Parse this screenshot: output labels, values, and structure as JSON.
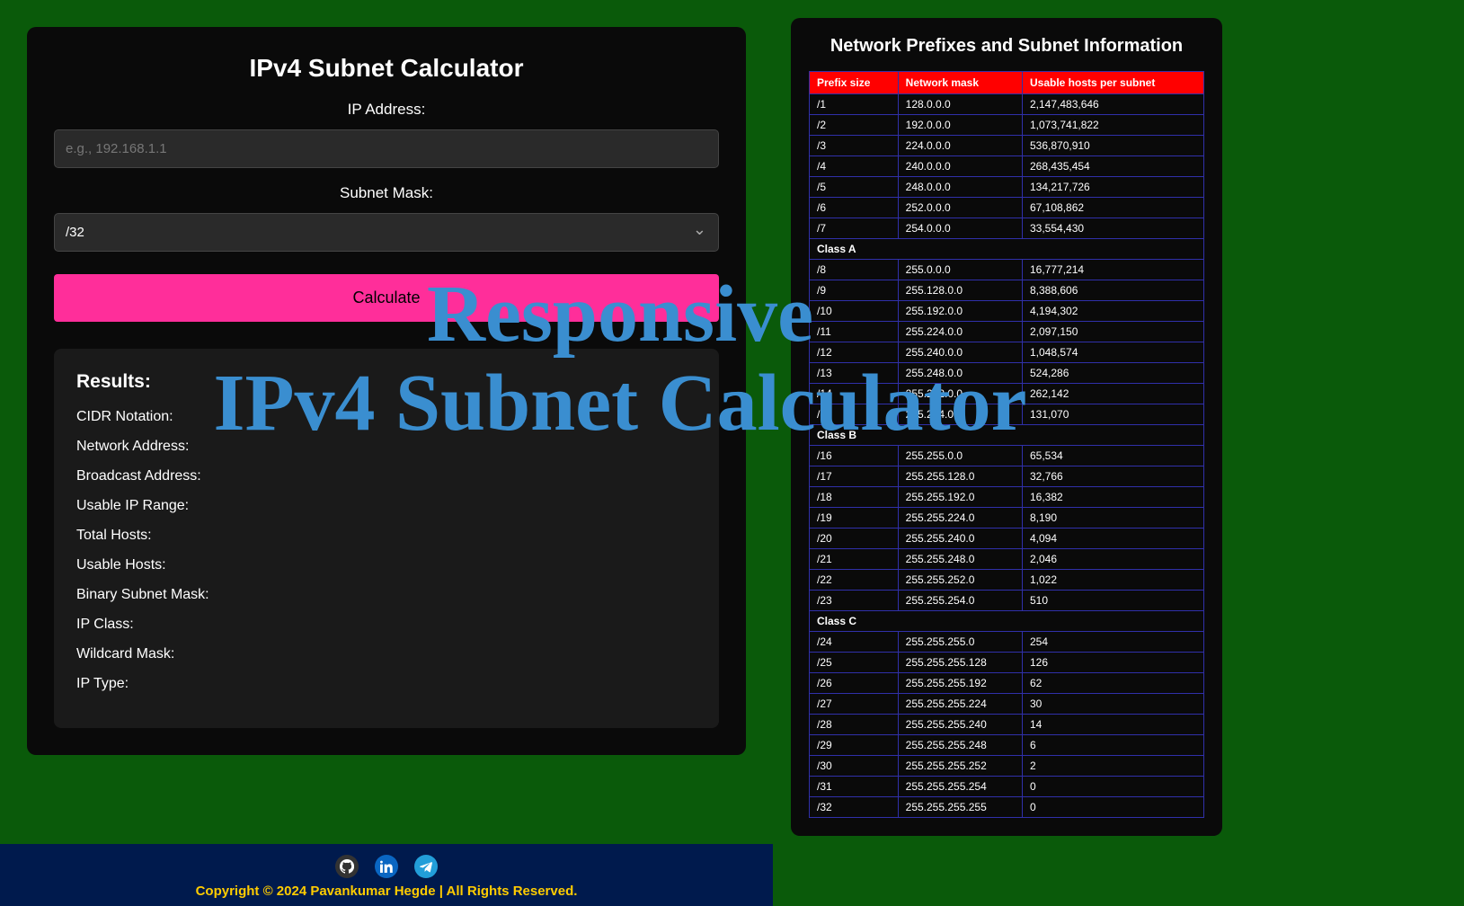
{
  "overlay": {
    "line1": "Responsive",
    "line2": "IPv4 Subnet Calculator"
  },
  "calc": {
    "title": "IPv4 Subnet Calculator",
    "ip_label": "IP Address:",
    "ip_placeholder": "e.g., 192.168.1.1",
    "mask_label": "Subnet Mask:",
    "mask_value": "/32",
    "calculate_label": "Calculate",
    "results_title": "Results:",
    "rows": [
      "CIDR Notation:",
      "Network Address:",
      "Broadcast Address:",
      "Usable IP Range:",
      "Total Hosts:",
      "Usable Hosts:",
      "Binary Subnet Mask:",
      "IP Class:",
      "Wildcard Mask:",
      "IP Type:"
    ]
  },
  "prefixes": {
    "title": "Network Prefixes and Subnet Information",
    "headers": [
      "Prefix size",
      "Network mask",
      "Usable hosts per subnet"
    ],
    "rows": [
      {
        "cells": [
          "/1",
          "128.0.0.0",
          "2,147,483,646"
        ]
      },
      {
        "cells": [
          "/2",
          "192.0.0.0",
          "1,073,741,822"
        ]
      },
      {
        "cells": [
          "/3",
          "224.0.0.0",
          "536,870,910"
        ]
      },
      {
        "cells": [
          "/4",
          "240.0.0.0",
          "268,435,454"
        ]
      },
      {
        "cells": [
          "/5",
          "248.0.0.0",
          "134,217,726"
        ]
      },
      {
        "cells": [
          "/6",
          "252.0.0.0",
          "67,108,862"
        ]
      },
      {
        "cells": [
          "/7",
          "254.0.0.0",
          "33,554,430"
        ]
      },
      {
        "class": true,
        "cells": [
          "Class A"
        ]
      },
      {
        "cells": [
          "/8",
          "255.0.0.0",
          "16,777,214"
        ]
      },
      {
        "cells": [
          "/9",
          "255.128.0.0",
          "8,388,606"
        ]
      },
      {
        "cells": [
          "/10",
          "255.192.0.0",
          "4,194,302"
        ]
      },
      {
        "cells": [
          "/11",
          "255.224.0.0",
          "2,097,150"
        ]
      },
      {
        "cells": [
          "/12",
          "255.240.0.0",
          "1,048,574"
        ]
      },
      {
        "cells": [
          "/13",
          "255.248.0.0",
          "524,286"
        ]
      },
      {
        "cells": [
          "/14",
          "255.252.0.0",
          "262,142"
        ]
      },
      {
        "cells": [
          "/15",
          "255.254.0.0",
          "131,070"
        ]
      },
      {
        "class": true,
        "cells": [
          "Class B"
        ]
      },
      {
        "cells": [
          "/16",
          "255.255.0.0",
          "65,534"
        ]
      },
      {
        "cells": [
          "/17",
          "255.255.128.0",
          "32,766"
        ]
      },
      {
        "cells": [
          "/18",
          "255.255.192.0",
          "16,382"
        ]
      },
      {
        "cells": [
          "/19",
          "255.255.224.0",
          "8,190"
        ]
      },
      {
        "cells": [
          "/20",
          "255.255.240.0",
          "4,094"
        ]
      },
      {
        "cells": [
          "/21",
          "255.255.248.0",
          "2,046"
        ]
      },
      {
        "cells": [
          "/22",
          "255.255.252.0",
          "1,022"
        ]
      },
      {
        "cells": [
          "/23",
          "255.255.254.0",
          "510"
        ]
      },
      {
        "class": true,
        "cells": [
          "Class C"
        ]
      },
      {
        "cells": [
          "/24",
          "255.255.255.0",
          "254"
        ]
      },
      {
        "cells": [
          "/25",
          "255.255.255.128",
          "126"
        ]
      },
      {
        "cells": [
          "/26",
          "255.255.255.192",
          "62"
        ]
      },
      {
        "cells": [
          "/27",
          "255.255.255.224",
          "30"
        ]
      },
      {
        "cells": [
          "/28",
          "255.255.255.240",
          "14"
        ]
      },
      {
        "cells": [
          "/29",
          "255.255.255.248",
          "6"
        ]
      },
      {
        "cells": [
          "/30",
          "255.255.255.252",
          "2"
        ]
      },
      {
        "cells": [
          "/31",
          "255.255.255.254",
          "0"
        ]
      },
      {
        "cells": [
          "/32",
          "255.255.255.255",
          "0"
        ]
      }
    ]
  },
  "footer": {
    "copyright": "Copyright © 2024 Pavankumar Hegde | All Rights Reserved."
  },
  "colors": {
    "bg_green": "#0a5a0a",
    "card_black": "#0a0a0a",
    "results_bg": "#1a1a1a",
    "input_bg": "#2a2a2a",
    "button_pink": "#ff2e9a",
    "header_red": "#ff0000",
    "table_border": "#3030aa",
    "footer_navy": "#001a4d",
    "copyright_yellow": "#ffcc00",
    "overlay_blue": "#3a8ed0"
  }
}
